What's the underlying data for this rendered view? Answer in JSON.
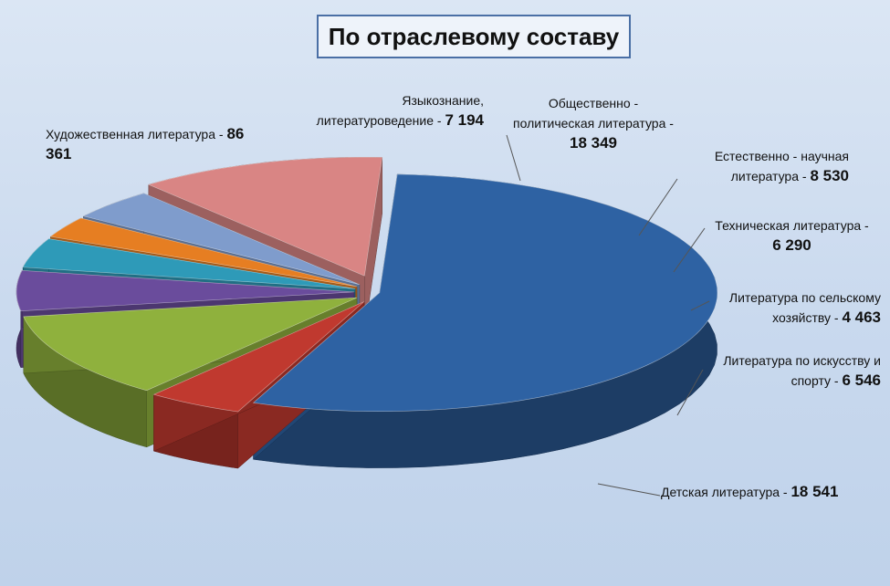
{
  "chart_data": {
    "type": "pie",
    "title": "По отраслевому составу",
    "slices": [
      {
        "label": "Художественная литература -",
        "value": 86361,
        "value_text": "86 361",
        "color": "#2e62a3"
      },
      {
        "label": "Языкознание, литературоведение -",
        "value": 7194,
        "value_text": "7 194",
        "color": "#c0392f"
      },
      {
        "label": "Общественно - политическая литература -",
        "value": 18349,
        "value_text": "18 349",
        "color": "#8fb13d"
      },
      {
        "label": "Естественно - научная литература -",
        "value": 8530,
        "value_text": "8 530",
        "color": "#6a4c9c"
      },
      {
        "label": "Техническая литература -",
        "value": 6290,
        "value_text": "6 290",
        "color": "#2e9ab8"
      },
      {
        "label": "Литература по сельскому хозяйству -",
        "value": 4463,
        "value_text": "4 463",
        "color": "#e67e22"
      },
      {
        "label": "Литература по искусству и спорту -",
        "value": 6546,
        "value_text": "6 546",
        "color": "#7f9ccc"
      },
      {
        "label": "Детская литература -",
        "value": 18541,
        "value_text": "18 541",
        "color": "#d98584"
      }
    ]
  }
}
